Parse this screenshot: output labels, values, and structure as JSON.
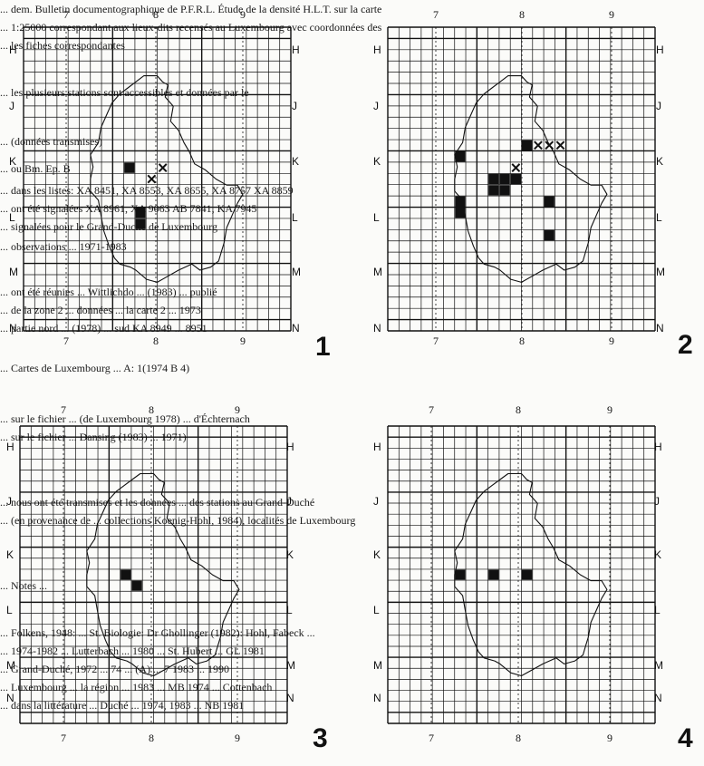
{
  "background_text": [
    "... dem. Bulletin documentographique de P.F.R.L. Étude de la densité H.L.T. sur la carte",
    "... 1:25000 correspondant aux lieux-dits recensés au Luxembourg avec coordonnées des",
    "... les fiches correspondantes",
    "... les plusieurs stations sont accessibles et données par le",
    "... (données transmises)",
    "... ou Bm. Ep. B",
    "... dans les listes: XA 8451, XA 8553, XA 8655, XA 8757 XA 8859",
    "... ont été signalées XA 8961, XA 9063 AB 7841, KA 7945",
    "... signalées pour le Grand-Duché de Luxembourg",
    "... observations ... 1971-1983",
    "... ont été réunies ... Wittlichdo ... (1983) ... publié",
    "... de la zone 2 ... données ... la carte 2 ... 1973",
    "... partie nord ... (1978) ... sud KA 8949 ... 8951",
    "... Cartes de Luxembourg ... A: 1(1974 B 4)",
    "... sur le fichier ... (de Luxembourg 1978) ... d'Échternach",
    "... sur le fichier ... Dansing (1983) ... 1971)",
    "... nous ont été transmises et les données ... des stations au Grand-Duché",
    "... (en provenance de ... collections Koenig-Hohl, 1984), localités de Luxembourg",
    "... Notes ...",
    "... Folkens, 1948: ... St. Biologie: Dr Ghollinger (1982): Hohl, Fabeck ...",
    "... 1974-1982 ... Lutterbach ... 1980 ... St. Hubert ... GL 1981",
    "... Grand-Duché, 1972 ... 74 ... (A) ... 7 1983 ... 1990",
    "... Luxembourg ... la région ... 1983 ... MB 1974 ... Cottenbach",
    "... dans la littérature ... Duché ... 1974, 1983 ... NB 1981"
  ],
  "maps": [
    {
      "number": "1",
      "columns": [
        "7",
        "8",
        "9"
      ],
      "rows": [
        "H",
        "J",
        "K",
        "L",
        "M",
        "N"
      ],
      "filled_cells": [
        [
          9,
          12
        ],
        [
          10,
          16
        ],
        [
          10,
          17
        ]
      ],
      "crossed_cells": [
        [
          11,
          13
        ],
        [
          12,
          12
        ]
      ]
    },
    {
      "number": "2",
      "columns": [
        "7",
        "8",
        "9"
      ],
      "rows": [
        "H",
        "J",
        "K",
        "L",
        "M",
        "N"
      ],
      "filled_cells": [
        [
          6,
          11
        ],
        [
          9,
          13
        ],
        [
          9,
          14
        ],
        [
          10,
          13
        ],
        [
          10,
          14
        ],
        [
          11,
          13
        ],
        [
          12,
          10
        ],
        [
          6,
          15
        ],
        [
          6,
          16
        ],
        [
          14,
          15
        ],
        [
          14,
          18
        ]
      ],
      "crossed_cells": [
        [
          13,
          10
        ],
        [
          14,
          10
        ],
        [
          15,
          10
        ],
        [
          11,
          12
        ]
      ]
    },
    {
      "number": "3",
      "columns": [
        "7",
        "8",
        "9"
      ],
      "rows": [
        "H",
        "J",
        "K",
        "L",
        "M",
        "N"
      ],
      "filled_cells": [
        [
          9,
          13
        ],
        [
          10,
          14
        ]
      ],
      "crossed_cells": []
    },
    {
      "number": "4",
      "columns": [
        "7",
        "8",
        "9"
      ],
      "rows": [
        "H",
        "J",
        "K",
        "L",
        "M",
        "N"
      ],
      "filled_cells": [
        [
          6,
          13
        ],
        [
          9,
          13
        ],
        [
          12,
          13
        ]
      ],
      "crossed_cells": []
    }
  ],
  "icons": {
    "filled_square": "filled-square-icon",
    "cross": "cross-icon"
  },
  "colors": {
    "ink": "#111111",
    "paper": "#fbfbf9"
  }
}
